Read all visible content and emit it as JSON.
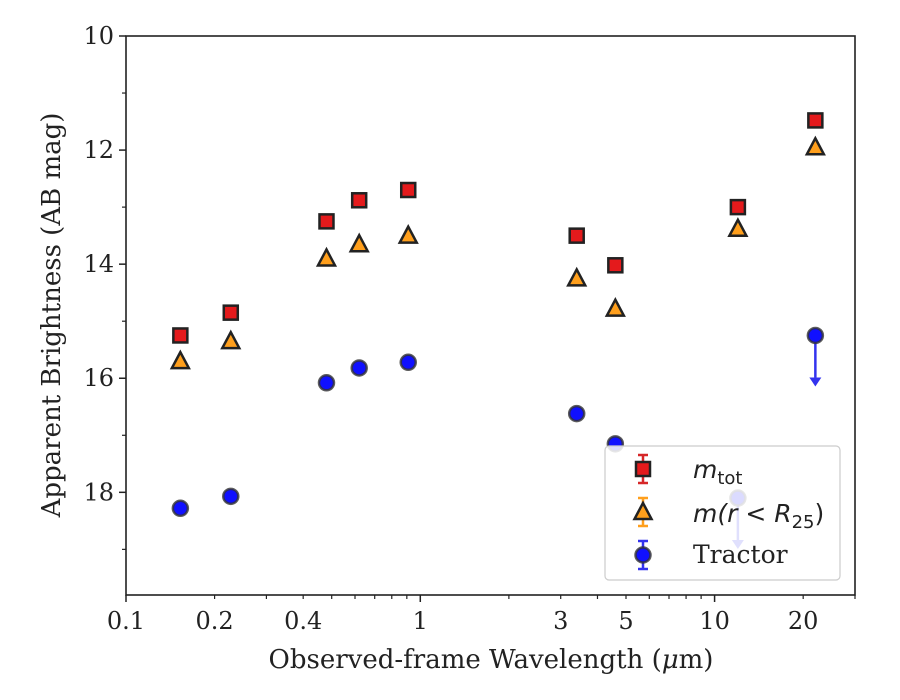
{
  "chart_data": {
    "type": "scatter",
    "x_scale": "log",
    "y_inverted": true,
    "xlim": [
      0.1,
      30
    ],
    "ylim": [
      10,
      19.8
    ],
    "xlabel_prefix": "Observed-frame Wavelength (",
    "xlabel_mu": "μ",
    "xlabel_suffix": "m)",
    "ylabel": "Apparent Brightness (AB mag)",
    "x_tick_labels": [
      {
        "value": 0.1,
        "label": "0.1"
      },
      {
        "value": 0.2,
        "label": "0.2"
      },
      {
        "value": 0.4,
        "label": "0.4"
      },
      {
        "value": 1,
        "label": "1"
      },
      {
        "value": 3,
        "label": "3"
      },
      {
        "value": 5,
        "label": "5"
      },
      {
        "value": 10,
        "label": "10"
      },
      {
        "value": 20,
        "label": "20"
      }
    ],
    "y_tick_labels": [
      {
        "value": 10,
        "label": "10"
      },
      {
        "value": 12,
        "label": "12"
      },
      {
        "value": 14,
        "label": "14"
      },
      {
        "value": 16,
        "label": "16"
      },
      {
        "value": 18,
        "label": "18"
      }
    ],
    "legend_position": "lower right",
    "series": [
      {
        "legend_key": "m_tot",
        "marker": "square",
        "color": "#e41a1c",
        "errorbar_color": "#d62728",
        "points": [
          {
            "x": 0.153,
            "y": 15.25
          },
          {
            "x": 0.227,
            "y": 14.85
          },
          {
            "x": 0.48,
            "y": 13.25
          },
          {
            "x": 0.62,
            "y": 12.88
          },
          {
            "x": 0.91,
            "y": 12.7
          },
          {
            "x": 3.4,
            "y": 13.5
          },
          {
            "x": 4.6,
            "y": 14.02
          },
          {
            "x": 12.0,
            "y": 13.0
          },
          {
            "x": 22.0,
            "y": 11.48
          }
        ]
      },
      {
        "legend_key": "m_r25",
        "marker": "triangle",
        "color": "#ff9f1c",
        "errorbar_color": "#ff9f1c",
        "points": [
          {
            "x": 0.153,
            "y": 15.7
          },
          {
            "x": 0.227,
            "y": 15.35
          },
          {
            "x": 0.48,
            "y": 13.9
          },
          {
            "x": 0.62,
            "y": 13.65
          },
          {
            "x": 0.91,
            "y": 13.5
          },
          {
            "x": 3.4,
            "y": 14.25
          },
          {
            "x": 4.6,
            "y": 14.78
          },
          {
            "x": 12.0,
            "y": 13.38
          },
          {
            "x": 22.0,
            "y": 11.95
          }
        ]
      },
      {
        "name": "Tractor",
        "legend_key": "tractor",
        "marker": "circle",
        "color": "#1010ff",
        "errorbar_color": "#3333ee",
        "points": [
          {
            "x": 0.153,
            "y": 18.28
          },
          {
            "x": 0.227,
            "y": 18.07
          },
          {
            "x": 0.48,
            "y": 16.08
          },
          {
            "x": 0.62,
            "y": 15.82
          },
          {
            "x": 0.91,
            "y": 15.72
          },
          {
            "x": 3.4,
            "y": 16.62
          },
          {
            "x": 4.6,
            "y": 17.15
          },
          {
            "x": 12.0,
            "y": 18.1,
            "upper_limit": true
          },
          {
            "x": 22.0,
            "y": 15.25,
            "upper_limit": true
          }
        ]
      }
    ],
    "legend": [
      {
        "key": "m_tot",
        "math": "m",
        "subscript": "tot"
      },
      {
        "key": "m_r25",
        "math_prefix": "m(r < R",
        "subscript": "25",
        "math_suffix": ")"
      },
      {
        "key": "tractor",
        "label": "Tractor"
      }
    ]
  }
}
